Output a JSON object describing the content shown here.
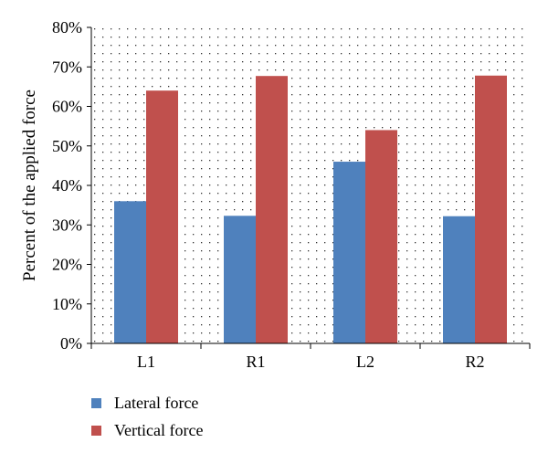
{
  "chart_data": {
    "type": "bar",
    "categories": [
      "L1",
      "R1",
      "L2",
      "R2"
    ],
    "series": [
      {
        "name": "Lateral force",
        "values": [
          36,
          32.3,
          46,
          32.2
        ],
        "color": "#4f81bd"
      },
      {
        "name": "Vertical force",
        "values": [
          64,
          67.7,
          54,
          67.8
        ],
        "color": "#c0504d"
      }
    ],
    "ylabel": "Percent of the applied force",
    "xlabel": "",
    "ylim": [
      0,
      80
    ],
    "yticks": [
      "0%",
      "10%",
      "20%",
      "30%",
      "40%",
      "50%",
      "60%",
      "70%",
      "80%"
    ],
    "grid": "dotted",
    "legend": "bottom-left"
  }
}
